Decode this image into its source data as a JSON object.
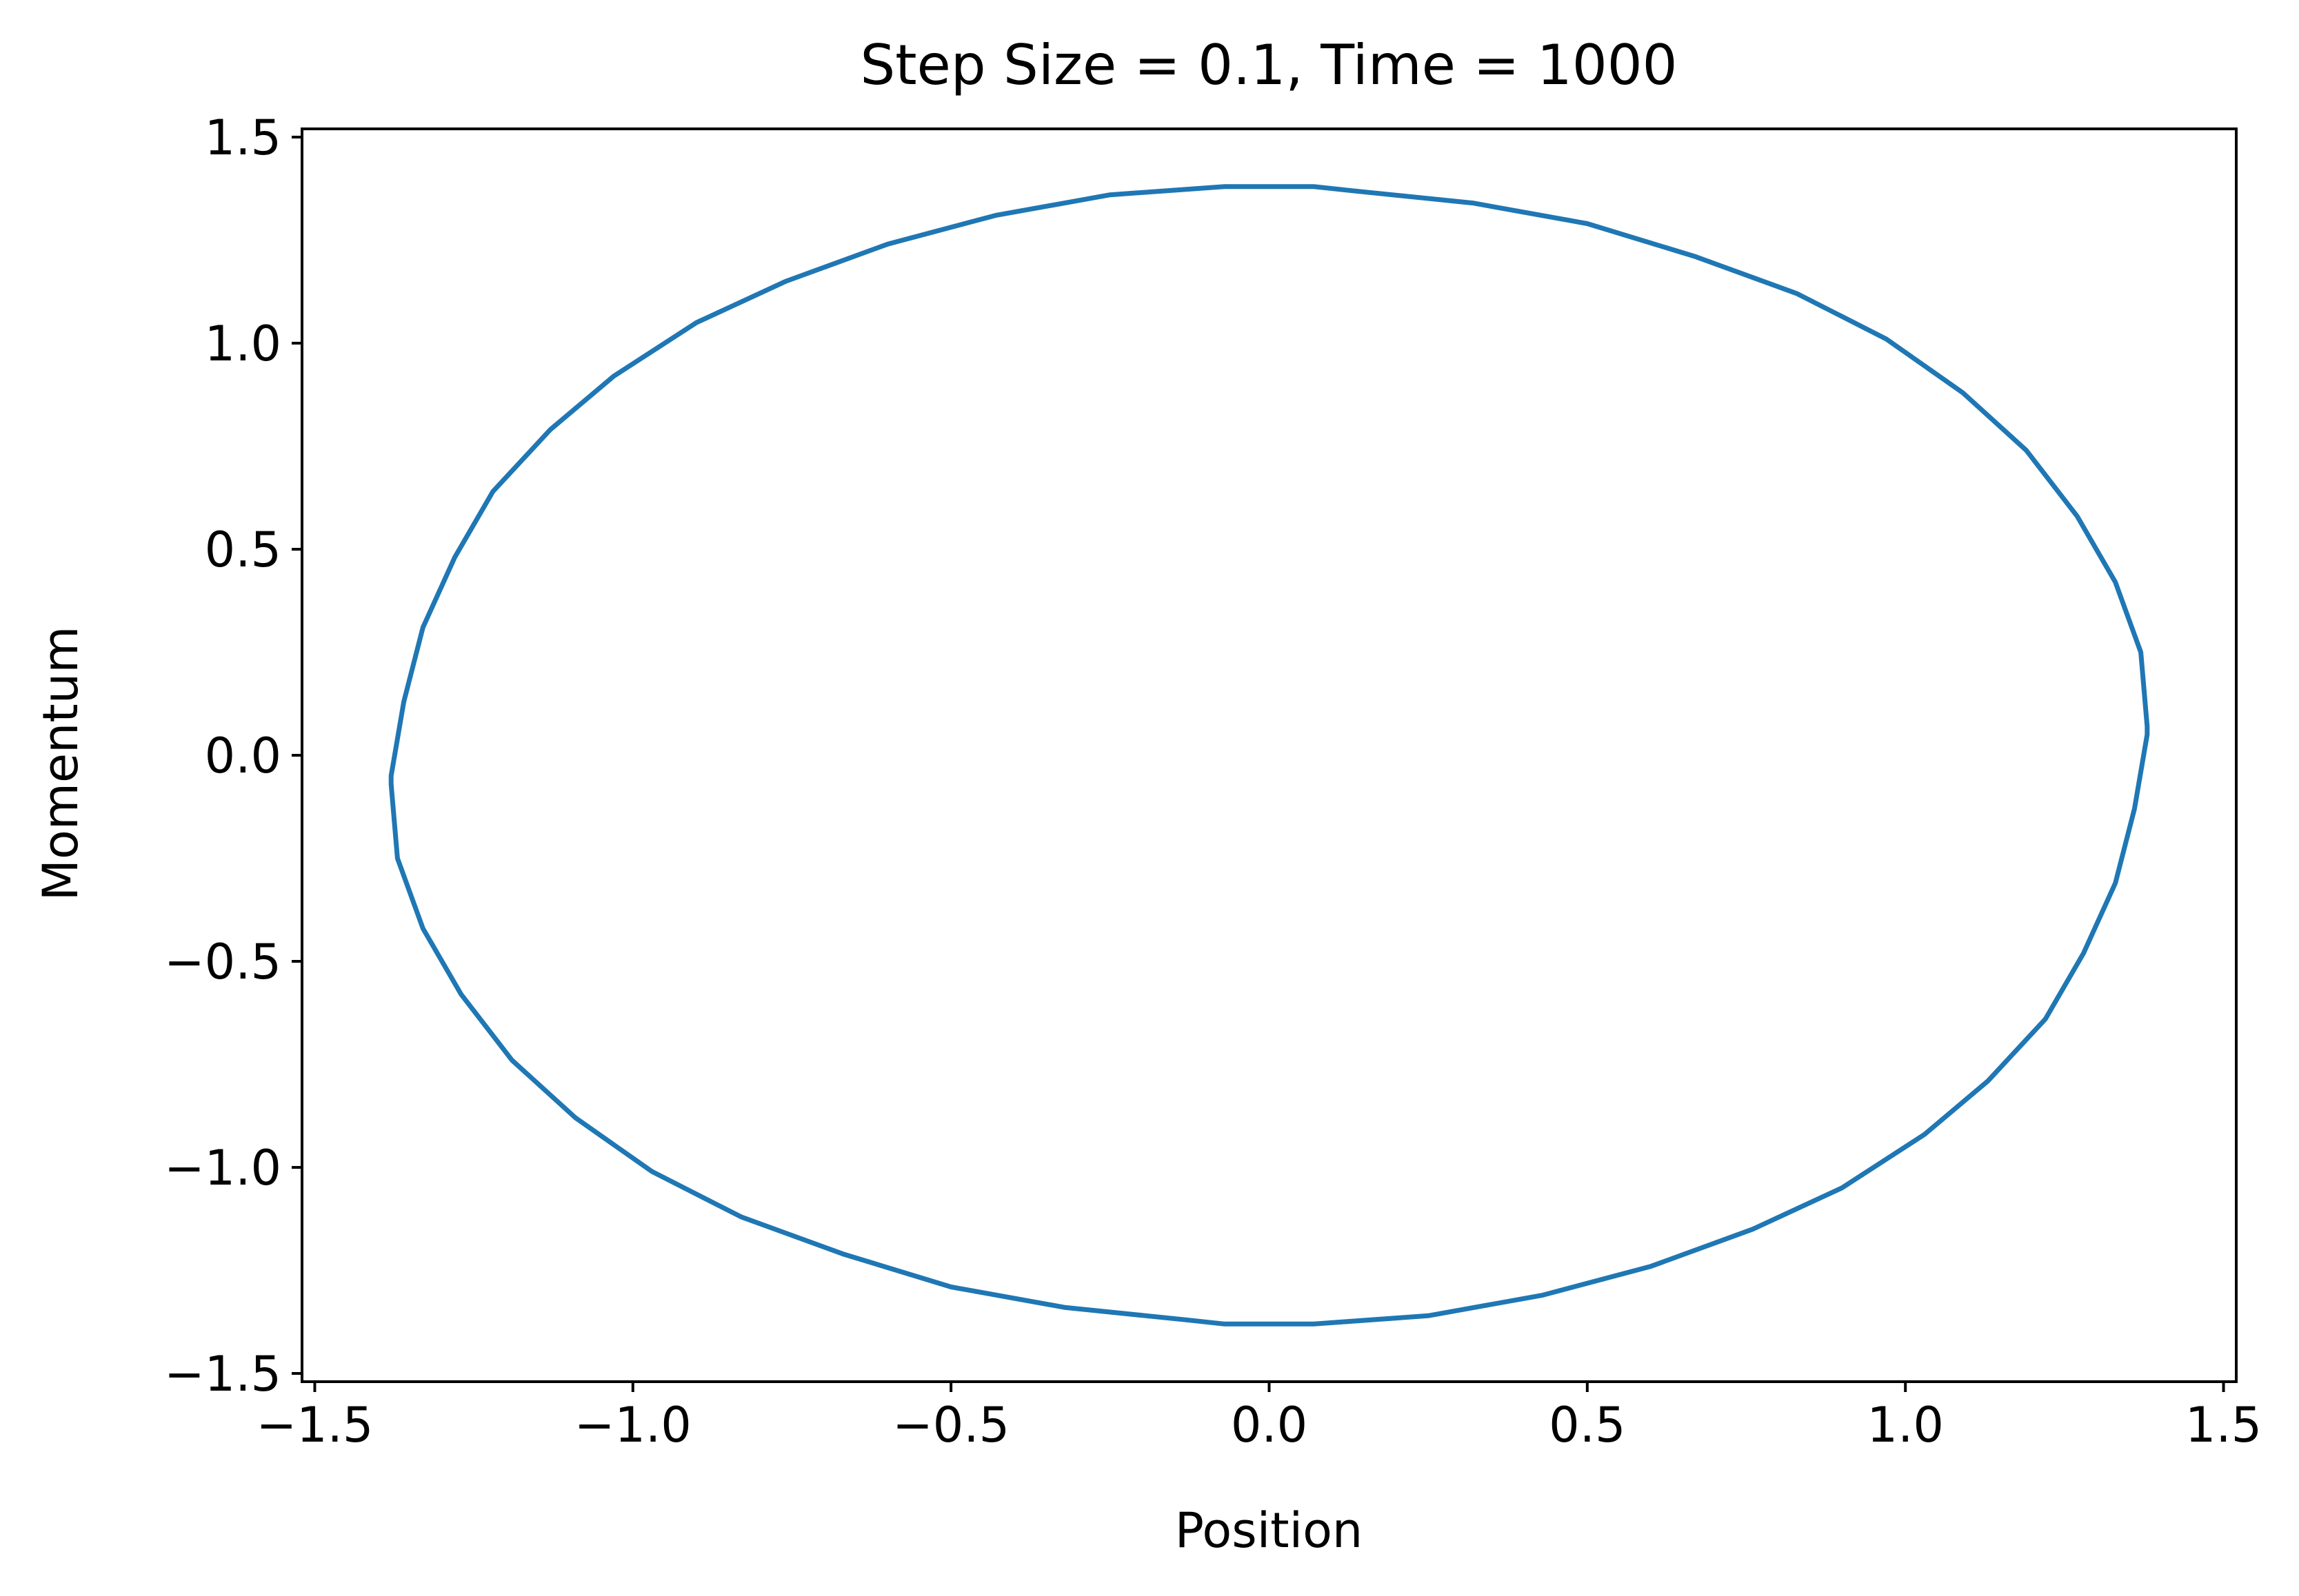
{
  "chart_data": {
    "type": "line",
    "title": "Step Size = 0.1, Time = 1000",
    "xlabel": "Position",
    "ylabel": "Momentum",
    "xlim": [
      -1.52,
      1.52
    ],
    "ylim": [
      -1.52,
      1.52
    ],
    "xticks": [
      -1.5,
      -1.0,
      -0.5,
      0.0,
      0.5,
      1.0,
      1.5
    ],
    "yticks": [
      -1.5,
      -1.0,
      -0.5,
      0.0,
      0.5,
      1.0,
      1.5
    ],
    "xtick_labels": [
      "−1.5",
      "−1.0",
      "−0.5",
      "0.0",
      "0.5",
      "1.0",
      "1.5"
    ],
    "ytick_labels": [
      "−1.5",
      "−1.0",
      "−0.5",
      "0.0",
      "0.5",
      "1.0",
      "1.5"
    ],
    "grid": false,
    "series": [
      {
        "color": "#1f77b4",
        "x": [
          1.38,
          1.37,
          1.33,
          1.27,
          1.19,
          1.09,
          0.97,
          0.83,
          0.67,
          0.5,
          0.32,
          0.13,
          0.07,
          -0.07,
          -0.25,
          -0.43,
          -0.6,
          -0.76,
          -0.9,
          -1.03,
          -1.13,
          -1.22,
          -1.28,
          -1.33,
          -1.36,
          -1.38,
          -1.38,
          -1.37,
          -1.33,
          -1.27,
          -1.19,
          -1.09,
          -0.97,
          -0.83,
          -0.67,
          -0.5,
          -0.32,
          -0.13,
          -0.07,
          0.07,
          0.25,
          0.43,
          0.6,
          0.76,
          0.9,
          1.03,
          1.13,
          1.22,
          1.28,
          1.33,
          1.36,
          1.38,
          1.38
        ],
        "y": [
          0.07,
          0.25,
          0.42,
          0.58,
          0.74,
          0.88,
          1.01,
          1.12,
          1.21,
          1.29,
          1.34,
          1.37,
          1.38,
          1.38,
          1.36,
          1.31,
          1.24,
          1.15,
          1.05,
          0.92,
          0.79,
          0.64,
          0.48,
          0.31,
          0.13,
          -0.05,
          -0.07,
          -0.25,
          -0.42,
          -0.58,
          -0.74,
          -0.88,
          -1.01,
          -1.12,
          -1.21,
          -1.29,
          -1.34,
          -1.37,
          -1.38,
          -1.38,
          -1.36,
          -1.31,
          -1.24,
          -1.15,
          -1.05,
          -0.92,
          -0.79,
          -0.64,
          -0.48,
          -0.31,
          -0.13,
          0.05,
          0.07
        ]
      }
    ]
  }
}
